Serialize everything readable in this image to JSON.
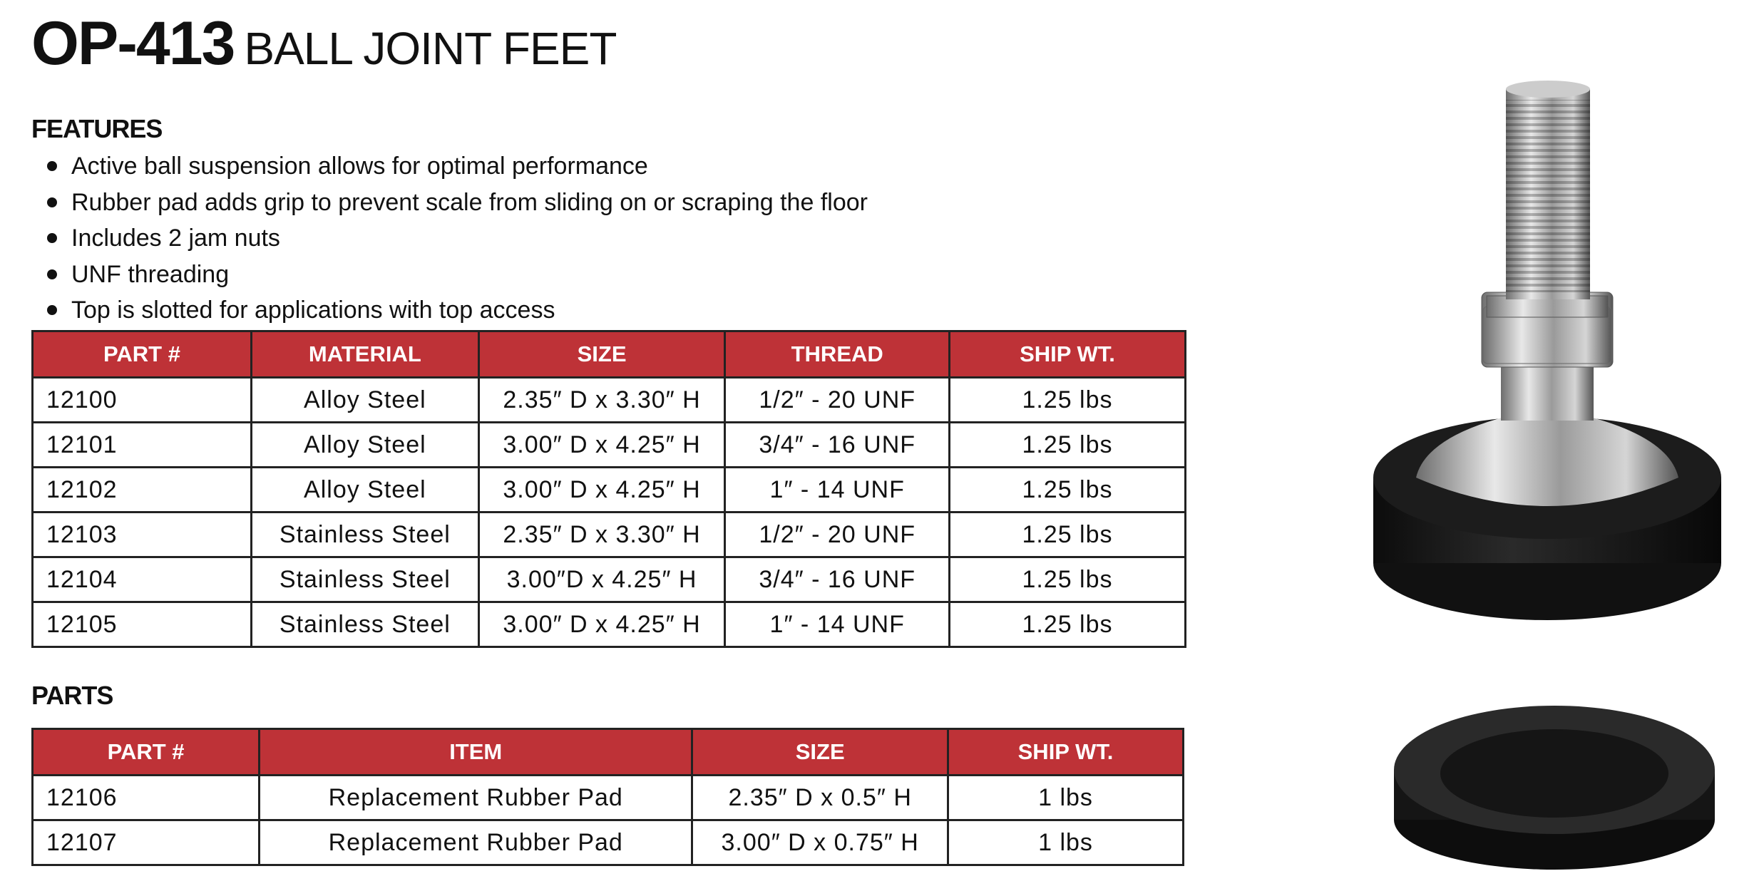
{
  "header": {
    "code": "OP-413",
    "name": "BALL JOINT FEET"
  },
  "features": {
    "heading": "FEATURES",
    "items": [
      "Active ball suspension allows for optimal performance",
      "Rubber pad adds grip to prevent scale from sliding on or scraping the floor",
      "Includes 2 jam nuts",
      "UNF threading",
      "Top is slotted for applications with top access"
    ]
  },
  "models_table": {
    "columns": [
      "PART #",
      "MATERIAL",
      "SIZE",
      "THREAD",
      "SHIP WT."
    ],
    "rows": [
      [
        "12100",
        "Alloy Steel",
        "2.35″ D x 3.30″ H",
        "1/2″ - 20 UNF",
        "1.25 lbs"
      ],
      [
        "12101",
        "Alloy Steel",
        "3.00″ D x 4.25″ H",
        "3/4″ - 16 UNF",
        "1.25 lbs"
      ],
      [
        "12102",
        "Alloy Steel",
        "3.00″ D x 4.25″ H",
        "1″ - 14 UNF",
        "1.25 lbs"
      ],
      [
        "12103",
        "Stainless Steel",
        "2.35″ D x 3.30″ H",
        "1/2″ - 20 UNF",
        "1.25 lbs"
      ],
      [
        "12104",
        "Stainless Steel",
        "3.00″D x 4.25″ H",
        "3/4″ - 16 UNF",
        "1.25 lbs"
      ],
      [
        "12105",
        "Stainless Steel",
        "3.00″ D x 4.25″ H",
        "1″ - 14 UNF",
        "1.25 lbs"
      ]
    ]
  },
  "parts": {
    "heading": "PARTS",
    "columns": [
      "PART #",
      "ITEM",
      "SIZE",
      "SHIP WT."
    ],
    "rows": [
      [
        "12106",
        "Replacement Rubber Pad",
        "2.35″ D x 0.5″ H",
        "1 lbs"
      ],
      [
        "12107",
        "Replacement Rubber Pad",
        "3.00″ D x 0.75″ H",
        "1 lbs"
      ]
    ]
  },
  "colors": {
    "header_red": "#BE3237",
    "text": "#111111"
  }
}
